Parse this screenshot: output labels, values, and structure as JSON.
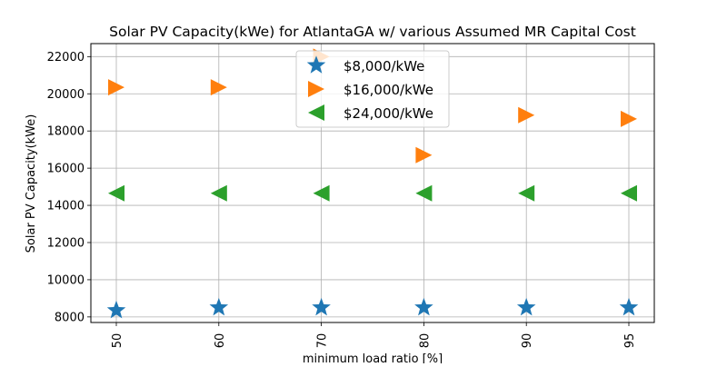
{
  "chart_data": {
    "type": "scatter",
    "title": "Solar PV Capacity(kWe) for AtlantaGA w/ various Assumed MR Capital Cost",
    "xlabel": "minimum load ratio [%]",
    "ylabel": "Solar PV Capacity(kWe)",
    "categories": [
      "50",
      "60",
      "70",
      "80",
      "90",
      "95"
    ],
    "yticks": [
      "8000",
      "10000",
      "12000",
      "14000",
      "16000",
      "18000",
      "20000",
      "22000"
    ],
    "ylim": [
      7700,
      22700
    ],
    "grid": true,
    "legend_position": "top-center",
    "series": [
      {
        "name": "$8,000/kWe",
        "marker": "star",
        "color": "#1f77b4",
        "values": [
          8350,
          8500,
          8500,
          8500,
          8500,
          8500
        ]
      },
      {
        "name": "$16,000/kWe",
        "marker": "triangle-right",
        "color": "#ff7f0e",
        "values": [
          20350,
          20350,
          22000,
          16700,
          18850,
          18650
        ]
      },
      {
        "name": "$24,000/kWe",
        "marker": "triangle-left",
        "color": "#2ca02c",
        "values": [
          14650,
          14650,
          14650,
          14650,
          14650,
          14650
        ]
      }
    ]
  }
}
